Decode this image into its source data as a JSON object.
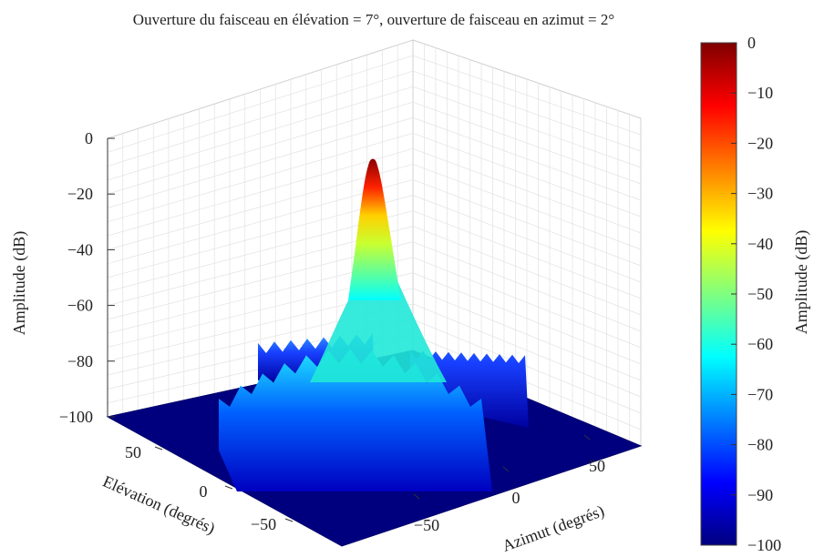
{
  "chart_data": {
    "type": "surface",
    "title": "Ouverture du faisceau en élévation = 7°, ouverture de faisceau en azimut = 2°",
    "xlabel": "Azimut (degrés)",
    "ylabel": "Elévation (degrés)",
    "zlabel": "Amplitude (dB)",
    "zlim": [
      -100,
      0
    ],
    "z_ticks": [
      "0",
      "−20",
      "−40",
      "−60",
      "−80",
      "−100"
    ],
    "x_ticks": [
      "−50",
      "0",
      "50"
    ],
    "y_ticks": [
      "50",
      "0",
      "−50"
    ],
    "grid": true,
    "colormap": "jet",
    "colorbar": {
      "label": "Amplitude (dB)",
      "range": [
        -100,
        0
      ],
      "ticks": [
        "0",
        "−10",
        "−20",
        "−30",
        "−40",
        "−50",
        "−60",
        "−70",
        "−80",
        "−90",
        "−100"
      ]
    },
    "peak": {
      "azimuth": 0,
      "elevation": 0,
      "amplitude_db": 0
    },
    "main_lobe_width": {
      "elevation": 7,
      "azimuth": 2
    },
    "sidelobe_ridge_levels_db": {
      "along_elevation": -65,
      "along_azimuth": -65
    },
    "floor_db": -100
  }
}
